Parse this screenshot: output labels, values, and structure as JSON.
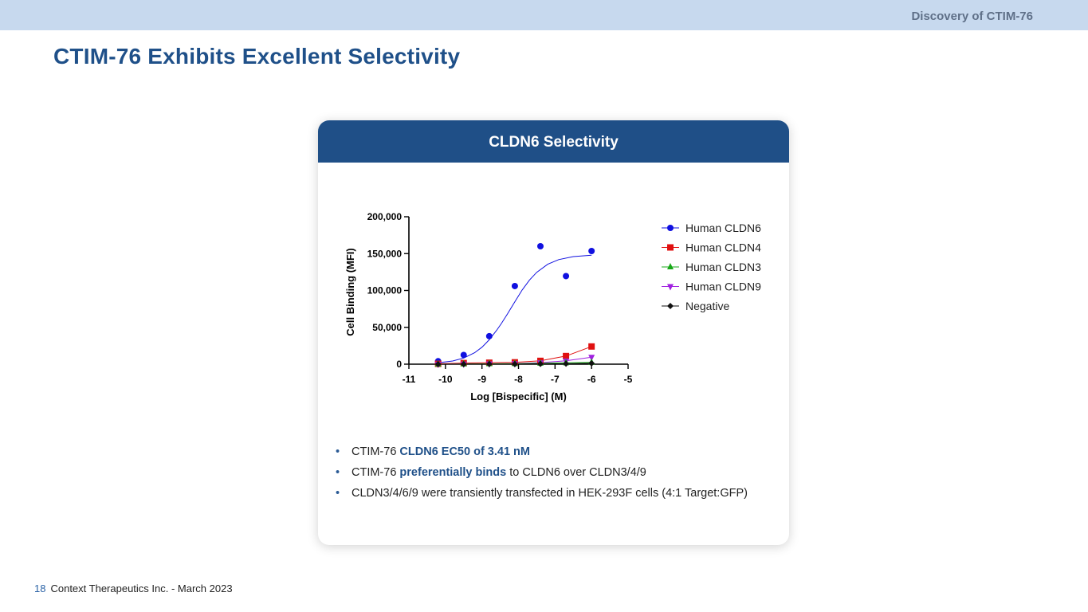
{
  "header": {
    "section": "Discovery of CTIM-76"
  },
  "title": "CTIM-76 Exhibits Excellent Selectivity",
  "card": {
    "title": "CLDN6 Selectivity",
    "bullets": [
      {
        "prefix": "CTIM-76 ",
        "highlight": "CLDN6 EC50 of 3.41 nM",
        "suffix": ""
      },
      {
        "prefix": "CTIM-76 ",
        "highlight": "preferentially binds",
        "suffix": " to CLDN6 over CLDN3/4/9"
      },
      {
        "prefix": "CLDN3/4/6/9 were transiently transfected in HEK-293F cells (4:1 Target:GFP)",
        "highlight": "",
        "suffix": ""
      }
    ]
  },
  "footer": {
    "page": "18",
    "text": "Context Therapeutics Inc. - March 2023"
  },
  "colors": {
    "brand": "#1f4f87",
    "topbar": "#c7d9ee"
  },
  "chart_data": {
    "type": "scatter",
    "xlabel": "Log [Bispecific] (M)",
    "ylabel": "Cell Binding (MFI)",
    "xlim": [
      -11,
      -5
    ],
    "ylim": [
      0,
      200000
    ],
    "xticks": [
      "-11",
      "-10",
      "-9",
      "-8",
      "-7",
      "-6",
      "-5"
    ],
    "yticks": [
      "0",
      "50,000",
      "100,000",
      "150,000",
      "200,000"
    ],
    "legend_position": "right",
    "series": [
      {
        "name": "Human CLDN6",
        "color": "#1010e0",
        "marker": "circle",
        "x": [
          -10.2,
          -9.5,
          -8.8,
          -8.1,
          -7.4,
          -6.7,
          -6.0
        ],
        "y": [
          4000,
          12500,
          38000,
          106000,
          160000,
          119500,
          153500
        ],
        "fit": [
          -10.2,
          -9.8,
          -9.5,
          -9.2,
          -9.0,
          -8.8,
          -8.6,
          -8.47,
          -8.3,
          -8.1,
          -7.9,
          -7.7,
          -7.5,
          -7.2,
          -6.9,
          -6.5,
          -6.0
        ],
        "fit_y": [
          1900,
          4300,
          8300,
          15600,
          23000,
          33100,
          45800,
          55100,
          68200,
          84700,
          100600,
          114200,
          124700,
          135600,
          141800,
          145900,
          147800
        ]
      },
      {
        "name": "Human CLDN4",
        "color": "#e01010",
        "marker": "square",
        "x": [
          -10.2,
          -9.5,
          -8.8,
          -8.1,
          -7.4,
          -6.7,
          -6.0
        ],
        "y": [
          500,
          1500,
          2000,
          2500,
          4500,
          11000,
          24000
        ]
      },
      {
        "name": "Human CLDN3",
        "color": "#18a818",
        "marker": "triangle-up",
        "x": [
          -10.2,
          -9.5,
          -8.8,
          -8.1,
          -7.4,
          -6.7,
          -6.0
        ],
        "y": [
          0,
          300,
          500,
          700,
          1200,
          1800,
          2500
        ]
      },
      {
        "name": "Human CLDN9",
        "color": "#a020e0",
        "marker": "triangle-down",
        "x": [
          -10.2,
          -9.5,
          -8.8,
          -8.1,
          -7.4,
          -6.7,
          -6.0
        ],
        "y": [
          0,
          300,
          500,
          800,
          2000,
          4500,
          9500
        ]
      },
      {
        "name": "Negative",
        "color": "#111111",
        "marker": "diamond",
        "x": [
          -10.2,
          -9.5,
          -8.8,
          -8.1,
          -7.4,
          -6.7,
          -6.0
        ],
        "y": [
          0,
          0,
          100,
          200,
          400,
          700,
          1200
        ]
      }
    ]
  }
}
